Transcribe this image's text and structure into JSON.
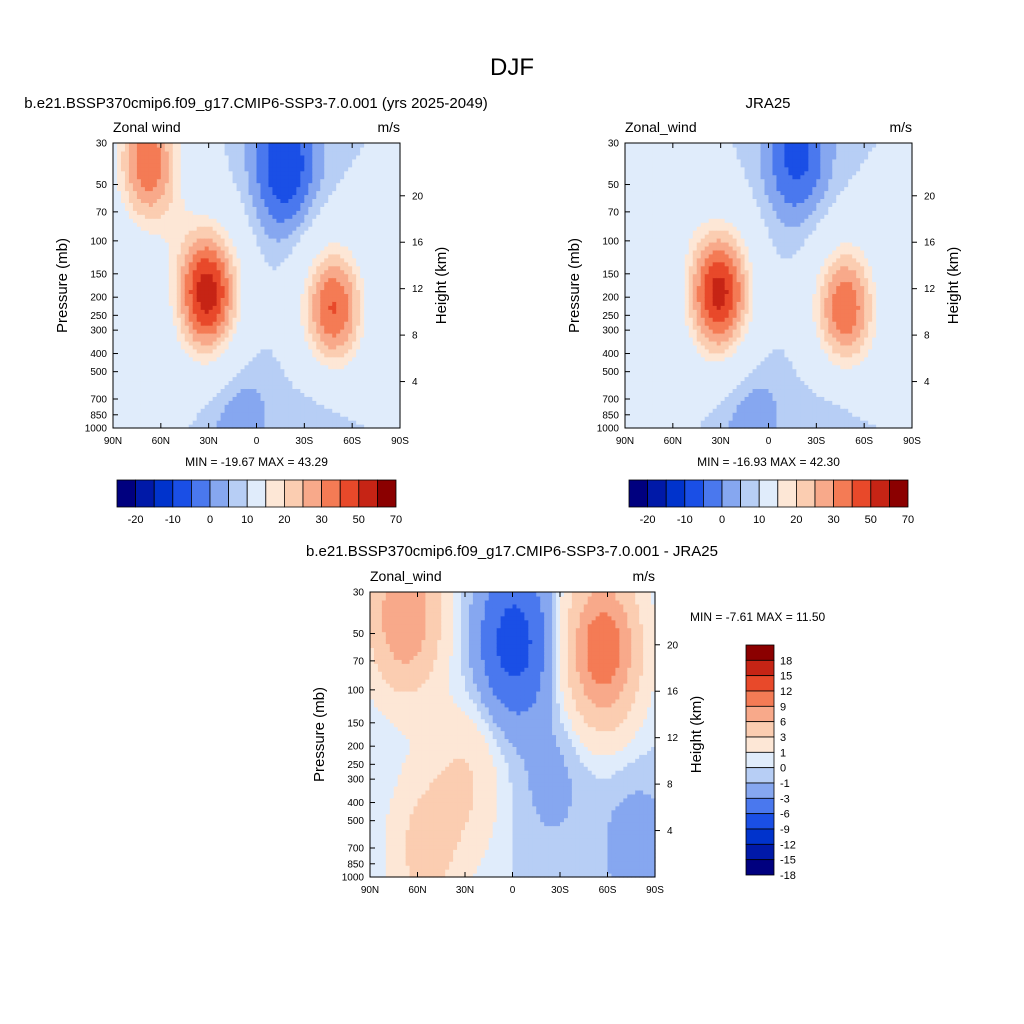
{
  "figure": {
    "season_title": "DJF"
  },
  "chart_data": [
    {
      "type": "heatmap",
      "title": "b.e21.BSSP370cmip6.f09_g17.CMIP6-SSP3-7.0.001 (yrs 2025-2049)",
      "left_label": "Zonal wind",
      "right_label": "m/s",
      "ylabel": "Pressure (mb)",
      "ylabel_right": "Height (km)",
      "xlabel": "",
      "x_ticks": [
        90,
        60,
        30,
        0,
        -30,
        -60,
        -90
      ],
      "x_tick_labels": [
        "90N",
        "60N",
        "30N",
        "0",
        "30S",
        "60S",
        "90S"
      ],
      "y_ticks": [
        30,
        50,
        70,
        100,
        150,
        200,
        250,
        300,
        400,
        500,
        700,
        850,
        1000
      ],
      "y_tick_labels": [
        "30",
        "50",
        "70",
        "100",
        "150",
        "200",
        "250",
        "300",
        "400",
        "500",
        "700",
        "850",
        "1000"
      ],
      "height_ticks_km": [
        "20",
        "16",
        "12",
        "8",
        "4"
      ],
      "ylim": [
        1000,
        30
      ],
      "xlim": [
        90,
        -90
      ],
      "min_max_text": "MIN = -19.67  MAX =  43.29",
      "min": -19.67,
      "max": 43.29,
      "features": [
        {
          "lat": 68,
          "p": 38,
          "value": 34
        },
        {
          "lat": 31,
          "p": 190,
          "value": 43.29
        },
        {
          "lat": -48,
          "p": 230,
          "value": 36
        },
        {
          "lat": -18,
          "p": 40,
          "value": -19.67
        },
        {
          "lat": 12,
          "p": 880,
          "value": -9
        },
        {
          "lat": -40,
          "p": 880,
          "value": -6
        }
      ],
      "colorbar": {
        "orientation": "horizontal",
        "tick_labels": [
          "-20",
          "-10",
          "0",
          "10",
          "20",
          "30",
          "50",
          "70"
        ]
      }
    },
    {
      "type": "heatmap",
      "title": "JRA25",
      "left_label": "Zonal_wind",
      "right_label": "m/s",
      "ylabel": "Pressure (mb)",
      "ylabel_right": "Height (km)",
      "xlabel": "",
      "x_ticks": [
        90,
        60,
        30,
        0,
        -30,
        -60,
        -90
      ],
      "x_tick_labels": [
        "90N",
        "60N",
        "30N",
        "0",
        "30S",
        "60S",
        "90S"
      ],
      "y_ticks": [
        30,
        50,
        70,
        100,
        150,
        200,
        250,
        300,
        400,
        500,
        700,
        850,
        1000
      ],
      "y_tick_labels": [
        "30",
        "50",
        "70",
        "100",
        "150",
        "200",
        "250",
        "300",
        "400",
        "500",
        "700",
        "850",
        "1000"
      ],
      "height_ticks_km": [
        "20",
        "16",
        "12",
        "8",
        "4"
      ],
      "ylim": [
        1000,
        30
      ],
      "xlim": [
        90,
        -90
      ],
      "min_max_text": "MIN = -16.93  MAX =  42.30",
      "min": -16.93,
      "max": 42.3,
      "features": [
        {
          "lat": 70,
          "p": 40,
          "value": 14
        },
        {
          "lat": 31,
          "p": 190,
          "value": 42.3
        },
        {
          "lat": -48,
          "p": 230,
          "value": 35
        },
        {
          "lat": -18,
          "p": 35,
          "value": -16.93
        },
        {
          "lat": 12,
          "p": 880,
          "value": -9
        },
        {
          "lat": -40,
          "p": 880,
          "value": -6
        }
      ],
      "colorbar": {
        "orientation": "horizontal",
        "tick_labels": [
          "-20",
          "-10",
          "0",
          "10",
          "20",
          "30",
          "50",
          "70"
        ]
      }
    },
    {
      "type": "heatmap",
      "title": "b.e21.BSSP370cmip6.f09_g17.CMIP6-SSP3-7.0.001 - JRA25",
      "left_label": "Zonal_wind",
      "right_label": "m/s",
      "ylabel": "Pressure (mb)",
      "ylabel_right": "Height (km)",
      "xlabel": "",
      "x_ticks": [
        90,
        60,
        30,
        0,
        -30,
        -60,
        -90
      ],
      "x_tick_labels": [
        "90N",
        "60N",
        "30N",
        "0",
        "30S",
        "60S",
        "90S"
      ],
      "y_ticks": [
        30,
        50,
        70,
        100,
        150,
        200,
        250,
        300,
        400,
        500,
        700,
        850,
        1000
      ],
      "y_tick_labels": [
        "30",
        "50",
        "70",
        "100",
        "150",
        "200",
        "250",
        "300",
        "400",
        "500",
        "700",
        "850",
        "1000"
      ],
      "height_ticks_km": [
        "20",
        "16",
        "12",
        "8",
        "4"
      ],
      "ylim": [
        1000,
        30
      ],
      "xlim": [
        90,
        -90
      ],
      "min_max_text": "MIN =  -7.61  MAX =  11.50",
      "min": -7.61,
      "max": 11.5,
      "features": [
        {
          "lat": 68,
          "p": 40,
          "value": 9
        },
        {
          "lat": -57,
          "p": 60,
          "value": 11.5
        },
        {
          "lat": -1,
          "p": 55,
          "value": -7.61
        },
        {
          "lat": 30,
          "p": 300,
          "value": 3
        },
        {
          "lat": 55,
          "p": 700,
          "value": 4
        },
        {
          "lat": -25,
          "p": 300,
          "value": -1.5
        },
        {
          "lat": -78,
          "p": 700,
          "value": -2
        }
      ],
      "colorbar": {
        "orientation": "vertical",
        "tick_labels": [
          "18",
          "15",
          "12",
          "9",
          "6",
          "3",
          "1",
          "0",
          "-1",
          "-3",
          "-6",
          "-9",
          "-12",
          "-15",
          "-18"
        ]
      }
    }
  ],
  "colors": {
    "palette": [
      "#00007f",
      "#0019a8",
      "#0033cc",
      "#1a4fe6",
      "#4a78ee",
      "#86a7f0",
      "#b7cef5",
      "#e0ecfb",
      "#fde7d6",
      "#fbcdb1",
      "#f8a98a",
      "#f47b55",
      "#e8492a",
      "#c62415",
      "#8b0000"
    ]
  }
}
